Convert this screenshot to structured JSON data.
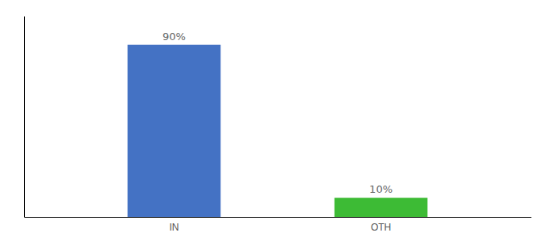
{
  "chart_data": {
    "type": "bar",
    "categories": [
      "IN",
      "OTH"
    ],
    "values": [
      90,
      10
    ],
    "value_labels": [
      "90%",
      "10%"
    ],
    "colors": [
      "#4472c4",
      "#3dbb35"
    ],
    "ylim": [
      0,
      105
    ],
    "yticks": [],
    "data_labels": true,
    "tick_labels": "x"
  }
}
